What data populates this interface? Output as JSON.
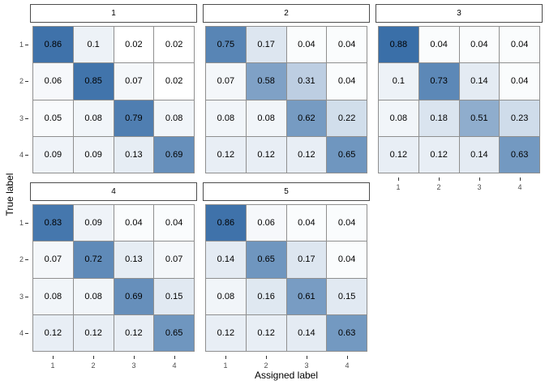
{
  "figure": {
    "x_axis_title": "Assigned label",
    "y_axis_title": "True label"
  },
  "colors": {
    "background": "#FFFFFF",
    "fill_low": "#FFFFFF",
    "fill_high": "#3A6FA8",
    "tile_border": "#8F8F8F",
    "strip_border": "#4D4D4D",
    "tick_mark": "#333333",
    "tick_label": "#4D4D4D",
    "value_text": "#000000"
  },
  "chart_data": {
    "type": "heatmap",
    "title": "",
    "xlabel": "Assigned label",
    "ylabel": "True label",
    "x_categories": [
      "1",
      "2",
      "3",
      "4"
    ],
    "y_categories": [
      "1",
      "2",
      "3",
      "4"
    ],
    "fill_scale": {
      "low_color": "#FFFFFF",
      "high_color": "#3A6FA8",
      "domain_min": 0.02,
      "domain_max": 0.88
    },
    "legend_position": "none",
    "grid": false,
    "facets": [
      {
        "label": "1",
        "rows": [
          [
            0.86,
            0.1,
            0.02,
            0.02
          ],
          [
            0.06,
            0.85,
            0.07,
            0.02
          ],
          [
            0.05,
            0.08,
            0.79,
            0.08
          ],
          [
            0.09,
            0.09,
            0.13,
            0.69
          ]
        ]
      },
      {
        "label": "2",
        "rows": [
          [
            0.75,
            0.17,
            0.04,
            0.04
          ],
          [
            0.07,
            0.58,
            0.31,
            0.04
          ],
          [
            0.08,
            0.08,
            0.62,
            0.22
          ],
          [
            0.12,
            0.12,
            0.12,
            0.65
          ]
        ]
      },
      {
        "label": "3",
        "rows": [
          [
            0.88,
            0.04,
            0.04,
            0.04
          ],
          [
            0.1,
            0.73,
            0.14,
            0.04
          ],
          [
            0.08,
            0.18,
            0.51,
            0.23
          ],
          [
            0.12,
            0.12,
            0.14,
            0.63
          ]
        ]
      },
      {
        "label": "4",
        "rows": [
          [
            0.83,
            0.09,
            0.04,
            0.04
          ],
          [
            0.07,
            0.72,
            0.13,
            0.07
          ],
          [
            0.08,
            0.08,
            0.69,
            0.15
          ],
          [
            0.12,
            0.12,
            0.12,
            0.65
          ]
        ]
      },
      {
        "label": "5",
        "rows": [
          [
            0.86,
            0.06,
            0.04,
            0.04
          ],
          [
            0.14,
            0.65,
            0.17,
            0.04
          ],
          [
            0.08,
            0.16,
            0.61,
            0.15
          ],
          [
            0.12,
            0.12,
            0.14,
            0.63
          ]
        ]
      }
    ]
  }
}
